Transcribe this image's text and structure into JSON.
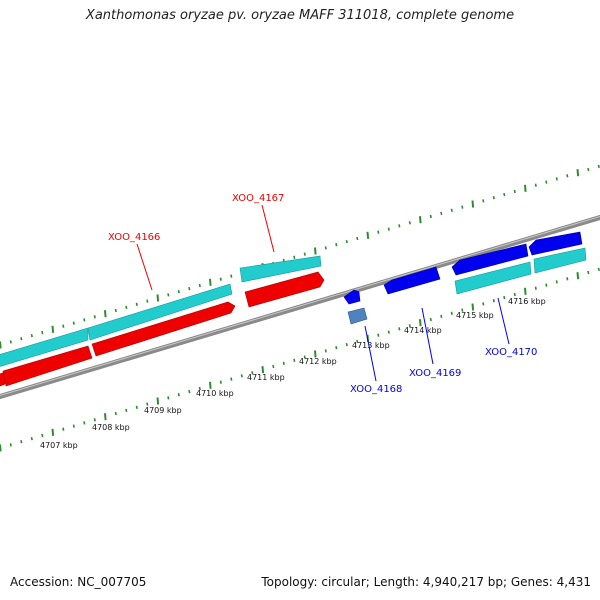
{
  "title": "Xanthomonas oryzae pv. oryzae MAFF 311018, complete genome",
  "footer": {
    "accession": "Accession: NC_007705",
    "summary": "Topology: circular; Length: 4,940,217 bp; Genes: 4,431"
  },
  "colors": {
    "forward_gene": "#ee0000",
    "reverse_gene": "#0000ee",
    "cds": "#22cccc",
    "rna": "#4f83bf",
    "backbone": "#8a8a8a",
    "tick": "#2e8b2e"
  },
  "scale_labels": [
    "4707 kbp",
    "4708 kbp",
    "4709 kbp",
    "4710 kbp",
    "4711 kbp",
    "4712 kbp",
    "4713 kbp",
    "4714 kbp",
    "4715 kbp",
    "4716 kbp"
  ],
  "gene_labels": [
    {
      "name": "XOO_4166",
      "strand": "forward"
    },
    {
      "name": "XOO_4167",
      "strand": "forward"
    },
    {
      "name": "XOO_4168",
      "strand": "reverse"
    },
    {
      "name": "XOO_4169",
      "strand": "reverse"
    },
    {
      "name": "XOO_4170",
      "strand": "reverse"
    }
  ]
}
